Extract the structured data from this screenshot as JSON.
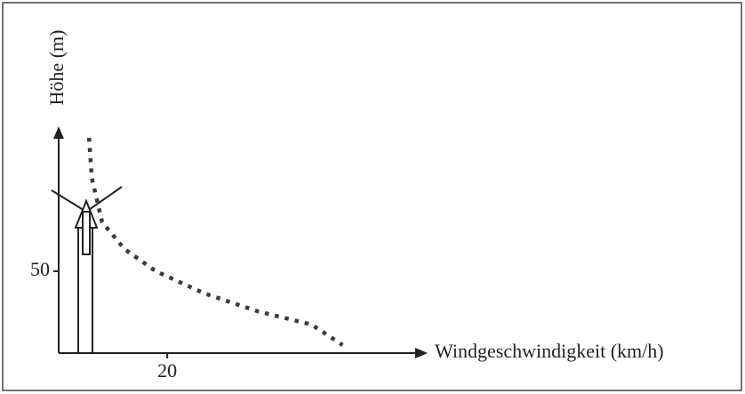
{
  "chart_data": {
    "type": "line",
    "x_label": "Windgeschwindigkeit (km/h)",
    "y_label": "Höhe (m)",
    "x": [
      5.6,
      6.1,
      8.0,
      12.1,
      17.9,
      26.9,
      36.7,
      46.6,
      52.3
    ],
    "values": [
      131.5,
      107,
      80,
      63.6,
      50,
      36.4,
      25.5,
      17.4,
      4.9
    ],
    "color": "#3a3a3a",
    "line_style": "dotted",
    "xlim": [
      0,
      66
    ],
    "ylim": [
      0,
      132
    ],
    "xticks": [
      20
    ],
    "yticks": [
      50
    ],
    "grid": false
  }
}
